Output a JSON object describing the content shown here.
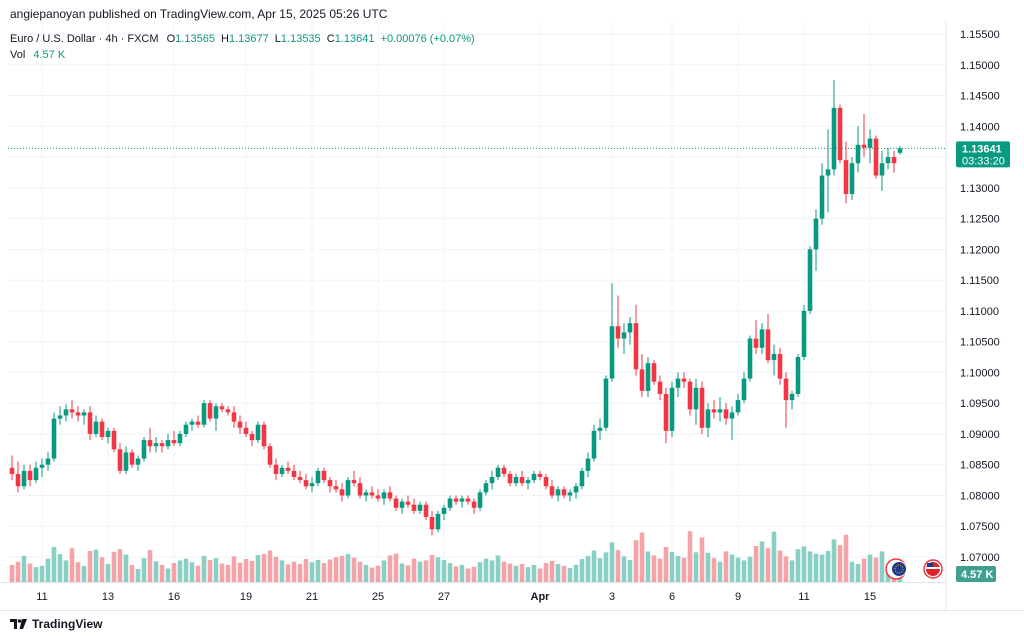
{
  "header": {
    "publish_line": "angiepanoyan published on TradingView.com, Apr 15, 2025 05:26 UTC"
  },
  "legend": {
    "symbol": "Euro / U.S. Dollar · 4h · FXCM",
    "open_label": "O",
    "open": "1.13565",
    "high_label": "H",
    "high": "1.13677",
    "low_label": "L",
    "low": "1.13535",
    "close_label": "C",
    "close": "1.13641",
    "change": "+0.00076 (+0.07%)",
    "vol_label": "Vol",
    "vol": "4.57 K"
  },
  "price_badge": {
    "price": "1.13641",
    "countdown": "03:33:20"
  },
  "vol_badge": "4.57 K",
  "footer": {
    "brand": "TradingView"
  },
  "colors": {
    "up": "#089981",
    "down": "#f23645",
    "up_vol": "#89cfc4",
    "down_vol": "#f4a4a8",
    "grid": "#f0f3fa",
    "text": "#131722"
  },
  "chart_data": {
    "type": "candlestick",
    "title": "Euro / U.S. Dollar · 4h · FXCM",
    "ylim": [
      1.0665,
      1.1565
    ],
    "y_ticks": [
      "1.15500",
      "1.15000",
      "1.14500",
      "1.14000",
      "1.13500",
      "1.13000",
      "1.12500",
      "1.12000",
      "1.11500",
      "1.11000",
      "1.10500",
      "1.10000",
      "1.09500",
      "1.09000",
      "1.08500",
      "1.08000",
      "1.07500",
      "1.07000"
    ],
    "x_ticks": [
      {
        "label": "11",
        "bar": 5
      },
      {
        "label": "13",
        "bar": 16
      },
      {
        "label": "16",
        "bar": 27
      },
      {
        "label": "19",
        "bar": 39
      },
      {
        "label": "21",
        "bar": 50
      },
      {
        "label": "25",
        "bar": 61
      },
      {
        "label": "27",
        "bar": 72
      },
      {
        "label": "Apr",
        "bar": 88
      },
      {
        "label": "3",
        "bar": 100
      },
      {
        "label": "6",
        "bar": 110
      },
      {
        "label": "9",
        "bar": 121
      },
      {
        "label": "11",
        "bar": 132
      },
      {
        "label": "15",
        "bar": 143
      }
    ],
    "last_price": 1.13641,
    "series": [
      {
        "o": 1.0845,
        "h": 1.0865,
        "l": 1.0825,
        "c": 1.0835,
        "v": 38
      },
      {
        "o": 1.0835,
        "h": 1.0855,
        "l": 1.0805,
        "c": 1.0815,
        "v": 45
      },
      {
        "o": 1.0815,
        "h": 1.085,
        "l": 1.081,
        "c": 1.084,
        "v": 58
      },
      {
        "o": 1.084,
        "h": 1.085,
        "l": 1.0815,
        "c": 1.0825,
        "v": 41
      },
      {
        "o": 1.0825,
        "h": 1.0855,
        "l": 1.082,
        "c": 1.0845,
        "v": 33
      },
      {
        "o": 1.0845,
        "h": 1.086,
        "l": 1.083,
        "c": 1.085,
        "v": 36
      },
      {
        "o": 1.085,
        "h": 1.087,
        "l": 1.084,
        "c": 1.086,
        "v": 52
      },
      {
        "o": 1.086,
        "h": 1.0935,
        "l": 1.0855,
        "c": 1.0925,
        "v": 78
      },
      {
        "o": 1.0925,
        "h": 1.0945,
        "l": 1.0915,
        "c": 1.093,
        "v": 62
      },
      {
        "o": 1.093,
        "h": 1.0948,
        "l": 1.092,
        "c": 1.094,
        "v": 48
      },
      {
        "o": 1.094,
        "h": 1.0955,
        "l": 1.0925,
        "c": 1.0935,
        "v": 75
      },
      {
        "o": 1.0935,
        "h": 1.0945,
        "l": 1.092,
        "c": 1.093,
        "v": 44
      },
      {
        "o": 1.093,
        "h": 1.094,
        "l": 1.0915,
        "c": 1.0935,
        "v": 36
      },
      {
        "o": 1.0935,
        "h": 1.0945,
        "l": 1.089,
        "c": 1.09,
        "v": 69
      },
      {
        "o": 1.09,
        "h": 1.093,
        "l": 1.0895,
        "c": 1.092,
        "v": 72
      },
      {
        "o": 1.092,
        "h": 1.0925,
        "l": 1.089,
        "c": 1.0895,
        "v": 55
      },
      {
        "o": 1.0895,
        "h": 1.091,
        "l": 1.0885,
        "c": 1.0905,
        "v": 40
      },
      {
        "o": 1.0905,
        "h": 1.091,
        "l": 1.087,
        "c": 1.0875,
        "v": 67
      },
      {
        "o": 1.0875,
        "h": 1.0885,
        "l": 1.0835,
        "c": 1.084,
        "v": 73
      },
      {
        "o": 1.084,
        "h": 1.088,
        "l": 1.0835,
        "c": 1.087,
        "v": 61
      },
      {
        "o": 1.087,
        "h": 1.0875,
        "l": 1.0845,
        "c": 1.085,
        "v": 38
      },
      {
        "o": 1.085,
        "h": 1.0865,
        "l": 1.084,
        "c": 1.086,
        "v": 29
      },
      {
        "o": 1.086,
        "h": 1.0895,
        "l": 1.0855,
        "c": 1.089,
        "v": 53
      },
      {
        "o": 1.089,
        "h": 1.091,
        "l": 1.087,
        "c": 1.088,
        "v": 71
      },
      {
        "o": 1.088,
        "h": 1.0895,
        "l": 1.087,
        "c": 1.0885,
        "v": 46
      },
      {
        "o": 1.0885,
        "h": 1.089,
        "l": 1.087,
        "c": 1.088,
        "v": 38
      },
      {
        "o": 1.088,
        "h": 1.09,
        "l": 1.0875,
        "c": 1.089,
        "v": 30
      },
      {
        "o": 1.089,
        "h": 1.0905,
        "l": 1.088,
        "c": 1.0885,
        "v": 42
      },
      {
        "o": 1.0885,
        "h": 1.0905,
        "l": 1.088,
        "c": 1.09,
        "v": 48
      },
      {
        "o": 1.09,
        "h": 1.092,
        "l": 1.0895,
        "c": 1.0915,
        "v": 52
      },
      {
        "o": 1.0915,
        "h": 1.0925,
        "l": 1.0905,
        "c": 1.092,
        "v": 44
      },
      {
        "o": 1.092,
        "h": 1.093,
        "l": 1.091,
        "c": 1.0915,
        "v": 36
      },
      {
        "o": 1.0915,
        "h": 1.0955,
        "l": 1.091,
        "c": 1.095,
        "v": 58
      },
      {
        "o": 1.095,
        "h": 1.0955,
        "l": 1.092,
        "c": 1.0925,
        "v": 49
      },
      {
        "o": 1.0925,
        "h": 1.095,
        "l": 1.0905,
        "c": 1.0945,
        "v": 53
      },
      {
        "o": 1.0945,
        "h": 1.095,
        "l": 1.0935,
        "c": 1.094,
        "v": 41
      },
      {
        "o": 1.094,
        "h": 1.0945,
        "l": 1.093,
        "c": 1.0935,
        "v": 38
      },
      {
        "o": 1.0935,
        "h": 1.0945,
        "l": 1.091,
        "c": 1.092,
        "v": 57
      },
      {
        "o": 1.092,
        "h": 1.093,
        "l": 1.09,
        "c": 1.091,
        "v": 43
      },
      {
        "o": 1.091,
        "h": 1.092,
        "l": 1.0895,
        "c": 1.09,
        "v": 51
      },
      {
        "o": 1.09,
        "h": 1.0905,
        "l": 1.088,
        "c": 1.089,
        "v": 47
      },
      {
        "o": 1.089,
        "h": 1.092,
        "l": 1.0885,
        "c": 1.0915,
        "v": 60
      },
      {
        "o": 1.0915,
        "h": 1.092,
        "l": 1.0875,
        "c": 1.088,
        "v": 62
      },
      {
        "o": 1.088,
        "h": 1.0885,
        "l": 1.0845,
        "c": 1.085,
        "v": 70
      },
      {
        "o": 1.085,
        "h": 1.086,
        "l": 1.0825,
        "c": 1.0835,
        "v": 56
      },
      {
        "o": 1.0835,
        "h": 1.085,
        "l": 1.083,
        "c": 1.0845,
        "v": 48
      },
      {
        "o": 1.0845,
        "h": 1.0855,
        "l": 1.0835,
        "c": 1.084,
        "v": 39
      },
      {
        "o": 1.084,
        "h": 1.085,
        "l": 1.0825,
        "c": 1.083,
        "v": 45
      },
      {
        "o": 1.083,
        "h": 1.084,
        "l": 1.082,
        "c": 1.0825,
        "v": 40
      },
      {
        "o": 1.0825,
        "h": 1.0835,
        "l": 1.081,
        "c": 1.0815,
        "v": 51
      },
      {
        "o": 1.0815,
        "h": 1.083,
        "l": 1.0805,
        "c": 1.082,
        "v": 44
      },
      {
        "o": 1.082,
        "h": 1.0845,
        "l": 1.0815,
        "c": 1.084,
        "v": 49
      },
      {
        "o": 1.084,
        "h": 1.0845,
        "l": 1.082,
        "c": 1.0825,
        "v": 42
      },
      {
        "o": 1.0825,
        "h": 1.083,
        "l": 1.0805,
        "c": 1.0815,
        "v": 50
      },
      {
        "o": 1.0815,
        "h": 1.0825,
        "l": 1.0805,
        "c": 1.081,
        "v": 55
      },
      {
        "o": 1.081,
        "h": 1.082,
        "l": 1.079,
        "c": 1.08,
        "v": 58
      },
      {
        "o": 1.08,
        "h": 1.083,
        "l": 1.0795,
        "c": 1.0825,
        "v": 62
      },
      {
        "o": 1.0825,
        "h": 1.084,
        "l": 1.0815,
        "c": 1.082,
        "v": 54
      },
      {
        "o": 1.082,
        "h": 1.083,
        "l": 1.0795,
        "c": 1.08,
        "v": 45
      },
      {
        "o": 1.08,
        "h": 1.081,
        "l": 1.079,
        "c": 1.0805,
        "v": 38
      },
      {
        "o": 1.0805,
        "h": 1.0815,
        "l": 1.0795,
        "c": 1.08,
        "v": 32
      },
      {
        "o": 1.08,
        "h": 1.081,
        "l": 1.079,
        "c": 1.0795,
        "v": 36
      },
      {
        "o": 1.0795,
        "h": 1.081,
        "l": 1.0785,
        "c": 1.0805,
        "v": 48
      },
      {
        "o": 1.0805,
        "h": 1.0815,
        "l": 1.079,
        "c": 1.0795,
        "v": 59
      },
      {
        "o": 1.0795,
        "h": 1.08,
        "l": 1.0775,
        "c": 1.078,
        "v": 63
      },
      {
        "o": 1.078,
        "h": 1.0795,
        "l": 1.077,
        "c": 1.079,
        "v": 41
      },
      {
        "o": 1.079,
        "h": 1.08,
        "l": 1.078,
        "c": 1.0785,
        "v": 37
      },
      {
        "o": 1.0785,
        "h": 1.0795,
        "l": 1.077,
        "c": 1.0775,
        "v": 52
      },
      {
        "o": 1.0775,
        "h": 1.079,
        "l": 1.077,
        "c": 1.0785,
        "v": 45
      },
      {
        "o": 1.0785,
        "h": 1.079,
        "l": 1.076,
        "c": 1.0765,
        "v": 48
      },
      {
        "o": 1.0765,
        "h": 1.0775,
        "l": 1.0735,
        "c": 1.0745,
        "v": 60
      },
      {
        "o": 1.0745,
        "h": 1.0775,
        "l": 1.074,
        "c": 1.077,
        "v": 55
      },
      {
        "o": 1.077,
        "h": 1.0785,
        "l": 1.076,
        "c": 1.078,
        "v": 49
      },
      {
        "o": 1.078,
        "h": 1.08,
        "l": 1.0775,
        "c": 1.0795,
        "v": 42
      },
      {
        "o": 1.0795,
        "h": 1.08,
        "l": 1.0785,
        "c": 1.079,
        "v": 35
      },
      {
        "o": 1.079,
        "h": 1.08,
        "l": 1.078,
        "c": 1.0795,
        "v": 38
      },
      {
        "o": 1.0795,
        "h": 1.08,
        "l": 1.0785,
        "c": 1.079,
        "v": 30
      },
      {
        "o": 1.079,
        "h": 1.0795,
        "l": 1.077,
        "c": 1.078,
        "v": 34
      },
      {
        "o": 1.078,
        "h": 1.081,
        "l": 1.0775,
        "c": 1.0805,
        "v": 44
      },
      {
        "o": 1.0805,
        "h": 1.0825,
        "l": 1.08,
        "c": 1.082,
        "v": 52
      },
      {
        "o": 1.082,
        "h": 1.084,
        "l": 1.081,
        "c": 1.083,
        "v": 48
      },
      {
        "o": 1.083,
        "h": 1.085,
        "l": 1.0825,
        "c": 1.0845,
        "v": 59
      },
      {
        "o": 1.0845,
        "h": 1.085,
        "l": 1.083,
        "c": 1.0835,
        "v": 45
      },
      {
        "o": 1.0835,
        "h": 1.084,
        "l": 1.0815,
        "c": 1.082,
        "v": 41
      },
      {
        "o": 1.082,
        "h": 1.0835,
        "l": 1.0815,
        "c": 1.083,
        "v": 36
      },
      {
        "o": 1.083,
        "h": 1.084,
        "l": 1.0815,
        "c": 1.082,
        "v": 40
      },
      {
        "o": 1.082,
        "h": 1.083,
        "l": 1.081,
        "c": 1.0825,
        "v": 33
      },
      {
        "o": 1.0825,
        "h": 1.084,
        "l": 1.082,
        "c": 1.0835,
        "v": 38
      },
      {
        "o": 1.0835,
        "h": 1.084,
        "l": 1.0825,
        "c": 1.083,
        "v": 30
      },
      {
        "o": 1.083,
        "h": 1.0835,
        "l": 1.081,
        "c": 1.0815,
        "v": 42
      },
      {
        "o": 1.0815,
        "h": 1.0825,
        "l": 1.0795,
        "c": 1.08,
        "v": 47
      },
      {
        "o": 1.08,
        "h": 1.0815,
        "l": 1.079,
        "c": 1.081,
        "v": 40
      },
      {
        "o": 1.081,
        "h": 1.0815,
        "l": 1.0795,
        "c": 1.08,
        "v": 36
      },
      {
        "o": 1.08,
        "h": 1.081,
        "l": 1.079,
        "c": 1.0805,
        "v": 31
      },
      {
        "o": 1.0805,
        "h": 1.082,
        "l": 1.0795,
        "c": 1.0815,
        "v": 38
      },
      {
        "o": 1.0815,
        "h": 1.0845,
        "l": 1.081,
        "c": 1.084,
        "v": 51
      },
      {
        "o": 1.084,
        "h": 1.087,
        "l": 1.083,
        "c": 1.086,
        "v": 58
      },
      {
        "o": 1.086,
        "h": 1.0915,
        "l": 1.0855,
        "c": 1.0905,
        "v": 70
      },
      {
        "o": 1.0905,
        "h": 1.0925,
        "l": 1.089,
        "c": 1.091,
        "v": 53
      },
      {
        "o": 1.091,
        "h": 1.0995,
        "l": 1.0905,
        "c": 1.099,
        "v": 66
      },
      {
        "o": 1.099,
        "h": 1.1145,
        "l": 1.0985,
        "c": 1.1075,
        "v": 88
      },
      {
        "o": 1.1075,
        "h": 1.1125,
        "l": 1.104,
        "c": 1.1055,
        "v": 71
      },
      {
        "o": 1.1055,
        "h": 1.108,
        "l": 1.103,
        "c": 1.1065,
        "v": 57
      },
      {
        "o": 1.1065,
        "h": 1.109,
        "l": 1.1045,
        "c": 1.108,
        "v": 49
      },
      {
        "o": 1.108,
        "h": 1.111,
        "l": 1.0995,
        "c": 1.1005,
        "v": 93
      },
      {
        "o": 1.1005,
        "h": 1.103,
        "l": 1.096,
        "c": 1.097,
        "v": 110
      },
      {
        "o": 1.097,
        "h": 1.1025,
        "l": 1.096,
        "c": 1.1015,
        "v": 68
      },
      {
        "o": 1.1015,
        "h": 1.102,
        "l": 1.098,
        "c": 1.0985,
        "v": 59
      },
      {
        "o": 1.0985,
        "h": 1.0995,
        "l": 1.0955,
        "c": 1.0965,
        "v": 52
      },
      {
        "o": 1.0965,
        "h": 1.0975,
        "l": 1.0885,
        "c": 1.0905,
        "v": 78
      },
      {
        "o": 1.0905,
        "h": 1.0985,
        "l": 1.0895,
        "c": 1.0975,
        "v": 67
      },
      {
        "o": 1.0975,
        "h": 1.1,
        "l": 1.096,
        "c": 1.099,
        "v": 58
      },
      {
        "o": 1.099,
        "h": 1.1,
        "l": 1.0975,
        "c": 1.0985,
        "v": 54
      },
      {
        "o": 1.0985,
        "h": 1.099,
        "l": 1.093,
        "c": 1.094,
        "v": 113
      },
      {
        "o": 1.094,
        "h": 1.099,
        "l": 1.0915,
        "c": 1.0975,
        "v": 66
      },
      {
        "o": 1.0975,
        "h": 1.0985,
        "l": 1.09,
        "c": 1.091,
        "v": 99
      },
      {
        "o": 1.091,
        "h": 1.095,
        "l": 1.0895,
        "c": 1.094,
        "v": 65
      },
      {
        "o": 1.094,
        "h": 1.0955,
        "l": 1.0925,
        "c": 1.0935,
        "v": 53
      },
      {
        "o": 1.0935,
        "h": 1.096,
        "l": 1.092,
        "c": 1.094,
        "v": 45
      },
      {
        "o": 1.094,
        "h": 1.095,
        "l": 1.0915,
        "c": 1.0925,
        "v": 68
      },
      {
        "o": 1.0925,
        "h": 1.0945,
        "l": 1.089,
        "c": 1.0935,
        "v": 61
      },
      {
        "o": 1.0935,
        "h": 1.0965,
        "l": 1.093,
        "c": 1.0955,
        "v": 54
      },
      {
        "o": 1.0955,
        "h": 1.1,
        "l": 1.095,
        "c": 1.099,
        "v": 48
      },
      {
        "o": 1.099,
        "h": 1.106,
        "l": 1.0985,
        "c": 1.1055,
        "v": 56
      },
      {
        "o": 1.1055,
        "h": 1.1085,
        "l": 1.103,
        "c": 1.104,
        "v": 80
      },
      {
        "o": 1.104,
        "h": 1.108,
        "l": 1.103,
        "c": 1.107,
        "v": 90
      },
      {
        "o": 1.107,
        "h": 1.1095,
        "l": 1.1015,
        "c": 1.102,
        "v": 75
      },
      {
        "o": 1.102,
        "h": 1.1045,
        "l": 1.0995,
        "c": 1.103,
        "v": 112
      },
      {
        "o": 1.103,
        "h": 1.104,
        "l": 1.098,
        "c": 1.099,
        "v": 70
      },
      {
        "o": 1.099,
        "h": 1.1,
        "l": 1.091,
        "c": 1.0955,
        "v": 57
      },
      {
        "o": 1.0955,
        "h": 1.097,
        "l": 1.094,
        "c": 1.0965,
        "v": 48
      },
      {
        "o": 1.0965,
        "h": 1.103,
        "l": 1.096,
        "c": 1.1025,
        "v": 73
      },
      {
        "o": 1.1025,
        "h": 1.111,
        "l": 1.102,
        "c": 1.11,
        "v": 79
      },
      {
        "o": 1.11,
        "h": 1.1205,
        "l": 1.1095,
        "c": 1.12,
        "v": 68
      },
      {
        "o": 1.12,
        "h": 1.1265,
        "l": 1.1165,
        "c": 1.125,
        "v": 63
      },
      {
        "o": 1.125,
        "h": 1.134,
        "l": 1.124,
        "c": 1.132,
        "v": 61
      },
      {
        "o": 1.132,
        "h": 1.1395,
        "l": 1.126,
        "c": 1.133,
        "v": 69
      },
      {
        "o": 1.133,
        "h": 1.1475,
        "l": 1.132,
        "c": 1.143,
        "v": 95
      },
      {
        "o": 1.143,
        "h": 1.1435,
        "l": 1.134,
        "c": 1.1345,
        "v": 82
      },
      {
        "o": 1.1345,
        "h": 1.1375,
        "l": 1.1275,
        "c": 1.129,
        "v": 105
      },
      {
        "o": 1.129,
        "h": 1.135,
        "l": 1.128,
        "c": 1.134,
        "v": 45
      },
      {
        "o": 1.134,
        "h": 1.14,
        "l": 1.1325,
        "c": 1.137,
        "v": 40
      },
      {
        "o": 1.137,
        "h": 1.142,
        "l": 1.135,
        "c": 1.1365,
        "v": 52
      },
      {
        "o": 1.1365,
        "h": 1.1395,
        "l": 1.134,
        "c": 1.138,
        "v": 61
      },
      {
        "o": 1.138,
        "h": 1.1385,
        "l": 1.1315,
        "c": 1.132,
        "v": 54
      },
      {
        "o": 1.132,
        "h": 1.136,
        "l": 1.1295,
        "c": 1.134,
        "v": 68
      },
      {
        "o": 1.134,
        "h": 1.1365,
        "l": 1.133,
        "c": 1.135,
        "v": 30
      },
      {
        "o": 1.135,
        "h": 1.136,
        "l": 1.1325,
        "c": 1.134,
        "v": 20
      },
      {
        "o": 1.1357,
        "h": 1.1368,
        "l": 1.1354,
        "c": 1.1364,
        "v": 15
      }
    ]
  }
}
